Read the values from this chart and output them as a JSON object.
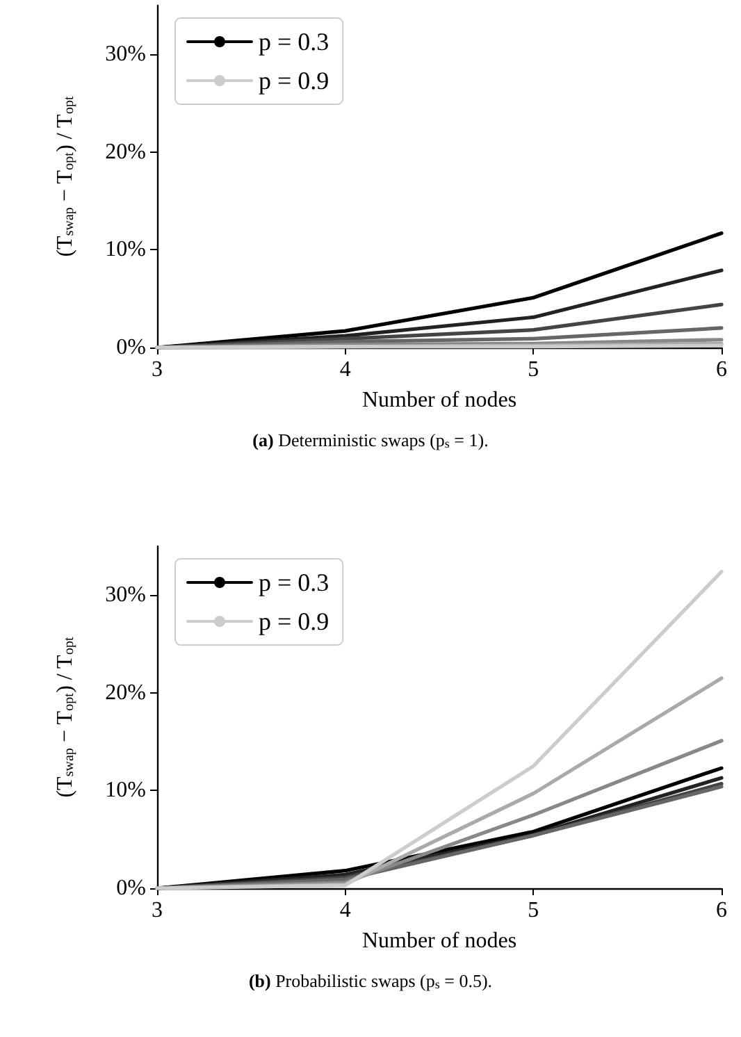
{
  "chart_data": [
    {
      "type": "line",
      "xlabel": "Number of nodes",
      "ylabel": "(T$_{swap}$ − T$_{opt}$) / T$_{opt}$",
      "x": [
        3,
        4,
        5,
        6
      ],
      "xlim": [
        3,
        6
      ],
      "xticks": [
        3,
        4,
        5,
        6
      ],
      "ylim": [
        0,
        35
      ],
      "yticks": [
        {
          "value": 0,
          "label": "0%"
        },
        {
          "value": 10,
          "label": "10%"
        },
        {
          "value": 20,
          "label": "20%"
        },
        {
          "value": 30,
          "label": "30%"
        }
      ],
      "legend": "top left",
      "annotations": [
        "(a) Deterministic swaps (p$_{s}$ = 1)."
      ],
      "series": [
        {
          "name": "p = 0.3",
          "color": "#000000",
          "values": [
            0,
            1.7,
            5.1,
            11.7
          ]
        },
        {
          "color": "#222222",
          "values": [
            0,
            1.2,
            3.1,
            7.9
          ]
        },
        {
          "color": "#444444",
          "values": [
            0,
            0.9,
            1.8,
            4.4
          ]
        },
        {
          "color": "#666666",
          "values": [
            0,
            0.6,
            0.9,
            2.0
          ]
        },
        {
          "color": "#888888",
          "values": [
            0,
            0.3,
            0.4,
            0.8
          ]
        },
        {
          "color": "#aaaaaa",
          "values": [
            0,
            0.1,
            0.2,
            0.4
          ]
        },
        {
          "name": "p = 0.9",
          "color": "#cccccc",
          "values": [
            0,
            0.1,
            0.1,
            0.2
          ]
        }
      ]
    },
    {
      "type": "line",
      "xlabel": "Number of nodes",
      "ylabel": "(T$_{swap}$ − T$_{opt}$) / T$_{opt}$",
      "x": [
        3,
        4,
        5,
        6
      ],
      "xlim": [
        3,
        6
      ],
      "xticks": [
        3,
        4,
        5,
        6
      ],
      "ylim": [
        0,
        35
      ],
      "yticks": [
        {
          "value": 0,
          "label": "0%"
        },
        {
          "value": 10,
          "label": "10%"
        },
        {
          "value": 20,
          "label": "20%"
        },
        {
          "value": 30,
          "label": "30%"
        }
      ],
      "legend": "top left",
      "annotations": [
        "(b) Probabilistic swaps (p$_{s}$ = 0.5)."
      ],
      "series": [
        {
          "name": "p = 0.3",
          "color": "#000000",
          "values": [
            0,
            1.8,
            5.8,
            12.3
          ]
        },
        {
          "color": "#222222",
          "values": [
            0,
            1.4,
            5.5,
            11.3
          ]
        },
        {
          "color": "#444444",
          "values": [
            0,
            1.1,
            5.4,
            10.7
          ]
        },
        {
          "color": "#666666",
          "values": [
            0,
            0.9,
            5.4,
            10.4
          ]
        },
        {
          "color": "#888888",
          "values": [
            0,
            0.6,
            7.5,
            15.1
          ]
        },
        {
          "color": "#aaaaaa",
          "values": [
            0,
            0.4,
            9.7,
            21.5
          ]
        },
        {
          "name": "p = 0.9",
          "color": "#cccccc",
          "values": [
            0,
            0.3,
            12.5,
            32.4
          ]
        }
      ]
    }
  ]
}
